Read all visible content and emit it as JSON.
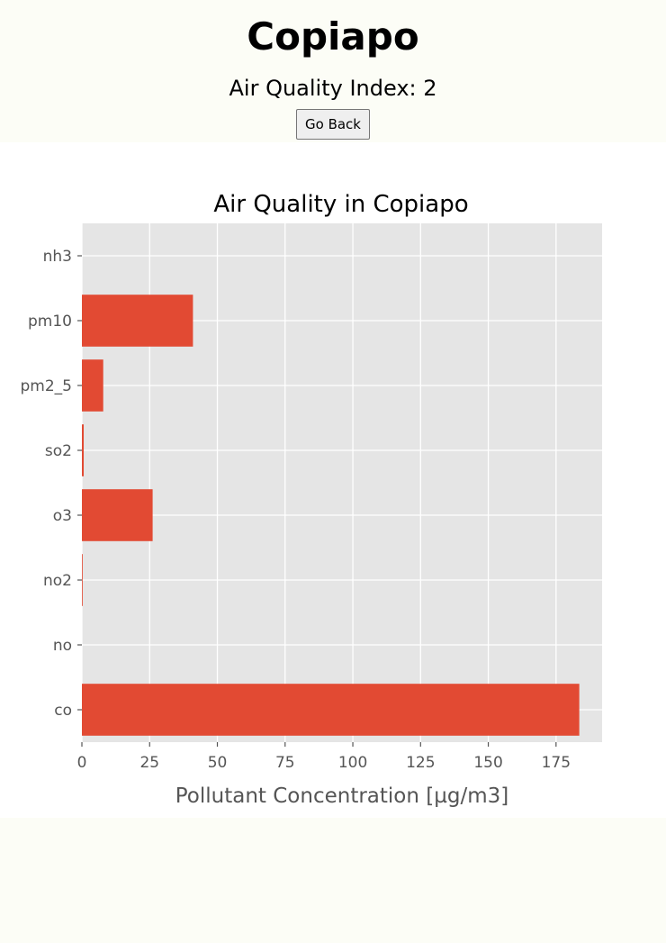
{
  "header": {
    "city": "Copiapo",
    "aqi_text": "Air Quality Index: 2",
    "back_button": "Go Back"
  },
  "colors": {
    "page_background": "#fcfdf6",
    "chart_background": "#ffffff",
    "plot_background": "#e5e5e5",
    "bar": "#e24a33",
    "gridline": "#ffffff",
    "tick_text": "#555555",
    "title_text": "#000000"
  },
  "chart_data": {
    "type": "bar",
    "orientation": "horizontal",
    "title": "Air Quality in Copiapo",
    "xlabel": "Pollutant Concentration [µg/m3]",
    "ylabel": "",
    "categories": [
      "co",
      "no",
      "no2",
      "o3",
      "so2",
      "pm2_5",
      "pm10",
      "nh3"
    ],
    "values": [
      183.58,
      0,
      0.27,
      26.11,
      0.67,
      7.87,
      40.99,
      0
    ],
    "xlim": [
      0,
      192
    ],
    "xticks": [
      0,
      25,
      50,
      75,
      100,
      125,
      150,
      175
    ],
    "grid": true
  }
}
